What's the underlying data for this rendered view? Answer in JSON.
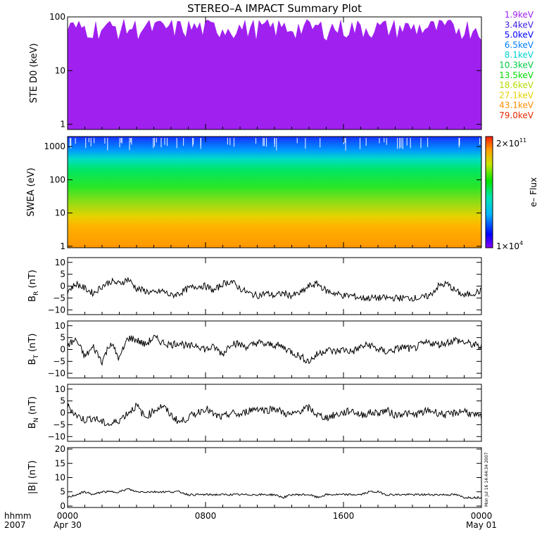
{
  "title": "STEREO–A IMPACT Summary Plot",
  "colors": {
    "frame": "#000000",
    "trace": "#000000",
    "background": "#ffffff"
  },
  "chart_data": [
    {
      "type": "line",
      "panel": "ste",
      "ylabel": "STE D0 (keV)",
      "yscale": "log",
      "ylim": [
        0.8,
        100
      ],
      "yticks": [
        {
          "v": 1,
          "label": "1"
        },
        {
          "v": 10,
          "label": "10"
        },
        {
          "v": 100,
          "label": "100"
        }
      ],
      "legend_position": "right",
      "series": [
        {
          "name": "1.9keV",
          "color": "#a020f0",
          "level": 60
        },
        {
          "name": "3.4keV",
          "color": "#3c1ee6",
          "level": 4
        },
        {
          "name": "5.0keV",
          "color": "#0000ff",
          "level": 3
        },
        {
          "name": "6.5keV",
          "color": "#0080ff",
          "level": 2.5
        },
        {
          "name": "8.1keV",
          "color": "#00d2d2",
          "level": 2.2
        },
        {
          "name": "10.3keV",
          "color": "#00cc44",
          "level": 2
        },
        {
          "name": "13.5keV",
          "color": "#00dd00",
          "level": 1.8
        },
        {
          "name": "18.6keV",
          "color": "#b4dc00",
          "level": 1.6
        },
        {
          "name": "27.1keV",
          "color": "#e6d200",
          "level": 1.4
        },
        {
          "name": "43.1keV",
          "color": "#ff8c00",
          "level": 1.3
        },
        {
          "name": "79.0keV",
          "color": "#e62800",
          "level": 1.2
        }
      ]
    },
    {
      "type": "heatmap",
      "panel": "swea",
      "ylabel": "SWEA (eV)",
      "yscale": "log",
      "ylim": [
        0.9,
        2000
      ],
      "yticks": [
        {
          "v": 1,
          "label": "1"
        },
        {
          "v": 10,
          "label": "10"
        },
        {
          "v": 100,
          "label": "100"
        },
        {
          "v": 1000,
          "label": "1000"
        }
      ],
      "colorbar": {
        "label": "e– Flux",
        "max_label": "2×10",
        "max_exp": "11",
        "min_label": "1×10",
        "min_exp": "4",
        "range": [
          10000.0,
          200000000000.0
        ]
      }
    },
    {
      "type": "line",
      "panel": "br",
      "ylabel_main": "B",
      "ylabel_sub": "R",
      "ylabel_unit": " (nT)",
      "ylim": [
        -12,
        12
      ],
      "yticks": [
        {
          "v": -10,
          "label": "−10"
        },
        {
          "v": -5,
          "label": "−5"
        },
        {
          "v": 0,
          "label": "0"
        },
        {
          "v": 5,
          "label": "5"
        },
        {
          "v": 10,
          "label": "10"
        }
      ],
      "x_hours": [
        0,
        0.5,
        1,
        1.5,
        2,
        2.5,
        3,
        3.5,
        4,
        4.5,
        5,
        5.5,
        6,
        6.5,
        7,
        7.5,
        8,
        8.5,
        9,
        9.5,
        10,
        10.5,
        11,
        11.5,
        12,
        12.5,
        13,
        13.5,
        14,
        14.5,
        15,
        15.5,
        16,
        16.5,
        17,
        17.5,
        18,
        18.5,
        19,
        19.5,
        20,
        20.5,
        21,
        21.5,
        22,
        22.5,
        23,
        23.5,
        24
      ],
      "values": [
        -2,
        1,
        -1,
        -3,
        0,
        2,
        1,
        3,
        -1,
        -2,
        -3,
        -2,
        -4,
        -3,
        -1,
        0,
        0,
        -2,
        1,
        2,
        -1,
        -3,
        -4,
        -3,
        -4,
        -3,
        -4,
        -3,
        0,
        1,
        -2,
        -3,
        -4,
        -4,
        -5,
        -5,
        -5,
        -5,
        -5,
        -5,
        -5,
        -5,
        -4,
        0,
        1,
        -2,
        -4,
        -3,
        -2
      ]
    },
    {
      "type": "line",
      "panel": "bt",
      "ylabel_main": "B",
      "ylabel_sub": "T",
      "ylabel_unit": " (nT)",
      "ylim": [
        -12,
        12
      ],
      "yticks": [
        {
          "v": -10,
          "label": "−10"
        },
        {
          "v": -5,
          "label": "−5"
        },
        {
          "v": 0,
          "label": "0"
        },
        {
          "v": 5,
          "label": "5"
        },
        {
          "v": 10,
          "label": "10"
        }
      ],
      "x_hours": [
        0,
        0.5,
        1,
        1.5,
        2,
        2.5,
        3,
        3.5,
        4,
        4.5,
        5,
        5.5,
        6,
        6.5,
        7,
        7.5,
        8,
        8.5,
        9,
        9.5,
        10,
        10.5,
        11,
        11.5,
        12,
        12.5,
        13,
        13.5,
        14,
        14.5,
        15,
        15.5,
        16,
        16.5,
        17,
        17.5,
        18,
        18.5,
        19,
        19.5,
        20,
        20.5,
        21,
        21.5,
        22,
        22.5,
        23,
        23.5,
        24
      ],
      "values": [
        2,
        4,
        -3,
        1,
        -5,
        3,
        -4,
        5,
        4,
        2,
        5,
        3,
        2,
        3,
        1,
        2,
        0,
        1,
        -2,
        3,
        2,
        1,
        3,
        2,
        2,
        1,
        -1,
        -3,
        -5,
        -2,
        0,
        -1,
        0,
        -1,
        1,
        2,
        0,
        -1,
        0,
        1,
        0,
        2,
        3,
        2,
        3,
        4,
        3,
        2,
        1
      ]
    },
    {
      "type": "line",
      "panel": "bn",
      "ylabel_main": "B",
      "ylabel_sub": "N",
      "ylabel_unit": " (nT)",
      "ylim": [
        -12,
        12
      ],
      "yticks": [
        {
          "v": -10,
          "label": "−10"
        },
        {
          "v": -5,
          "label": "−5"
        },
        {
          "v": 0,
          "label": "0"
        },
        {
          "v": 5,
          "label": "5"
        },
        {
          "v": 10,
          "label": "10"
        }
      ],
      "x_hours": [
        0,
        0.5,
        1,
        1.5,
        2,
        2.5,
        3,
        3.5,
        4,
        4.5,
        5,
        5.5,
        6,
        6.5,
        7,
        7.5,
        8,
        8.5,
        9,
        9.5,
        10,
        10.5,
        11,
        11.5,
        12,
        12.5,
        13,
        13.5,
        14,
        14.5,
        15,
        15.5,
        16,
        16.5,
        17,
        17.5,
        18,
        18.5,
        19,
        19.5,
        20,
        20.5,
        21,
        21.5,
        22,
        22.5,
        23,
        23.5,
        24
      ],
      "values": [
        3,
        -1,
        -3,
        -2,
        -4,
        -5,
        -3,
        0,
        3,
        -2,
        1,
        3,
        -1,
        -4,
        -2,
        0,
        2,
        -1,
        -2,
        0,
        -1,
        1,
        2,
        1,
        2,
        0,
        -1,
        1,
        2,
        -1,
        -2,
        -1,
        0,
        1,
        -1,
        0,
        0,
        1,
        -1,
        0,
        -1,
        0,
        1,
        0,
        -1,
        0,
        1,
        -1,
        -2
      ]
    },
    {
      "type": "line",
      "panel": "bmag",
      "ylabel": "|B| (nT)",
      "ylim": [
        -0.5,
        20.5
      ],
      "yticks": [
        {
          "v": 0,
          "label": "0"
        },
        {
          "v": 5,
          "label": "5"
        },
        {
          "v": 10,
          "label": "10"
        },
        {
          "v": 15,
          "label": "15"
        },
        {
          "v": 20,
          "label": "20"
        }
      ],
      "x_hours": [
        0,
        0.5,
        1,
        1.5,
        2,
        2.5,
        3,
        3.5,
        4,
        4.5,
        5,
        5.5,
        6,
        6.5,
        7,
        7.5,
        8,
        8.5,
        9,
        9.5,
        10,
        10.5,
        11,
        11.5,
        12,
        12.5,
        13,
        13.5,
        14,
        14.5,
        15,
        15.5,
        16,
        16.5,
        17,
        17.5,
        18,
        18.5,
        19,
        19.5,
        20,
        20.5,
        21,
        21.5,
        22,
        22.5,
        23,
        23.5,
        24
      ],
      "values": [
        3,
        4,
        5,
        4,
        5,
        5,
        5,
        6,
        5,
        5,
        5,
        5,
        5,
        5,
        4,
        4,
        4,
        4,
        4,
        4,
        4,
        4,
        4,
        4,
        4,
        3,
        4,
        4,
        4,
        3,
        4,
        4,
        4,
        4,
        4,
        5,
        5,
        4,
        4,
        4,
        4,
        4,
        4,
        4,
        4,
        4,
        3,
        3,
        3
      ],
      "stamp": "Mon Jul 16 14:44:34 2007"
    }
  ],
  "time_axis": {
    "format_label": "hhmm",
    "year_label": "2007",
    "ticks": [
      {
        "hour": 0,
        "label": "0000",
        "date": "Apr 30"
      },
      {
        "hour": 8,
        "label": "0800",
        "date": ""
      },
      {
        "hour": 16,
        "label": "1600",
        "date": ""
      },
      {
        "hour": 24,
        "label": "0000",
        "date": "May 01"
      }
    ]
  }
}
